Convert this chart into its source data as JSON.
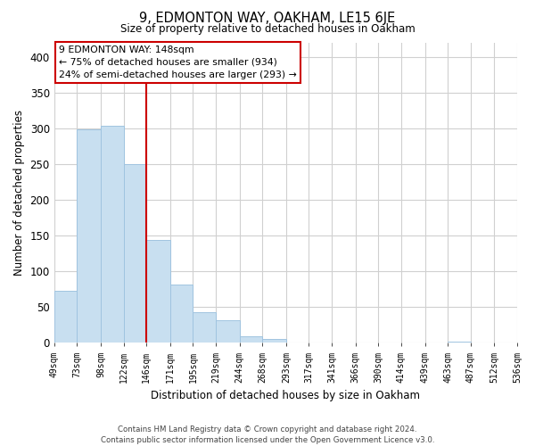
{
  "title": "9, EDMONTON WAY, OAKHAM, LE15 6JE",
  "subtitle": "Size of property relative to detached houses in Oakham",
  "xlabel": "Distribution of detached houses by size in Oakham",
  "ylabel": "Number of detached properties",
  "bar_values": [
    73,
    299,
    304,
    250,
    144,
    82,
    43,
    32,
    9,
    6,
    0,
    0,
    0,
    0,
    0,
    0,
    0,
    2,
    0,
    0
  ],
  "bin_edges": [
    49,
    73,
    98,
    122,
    146,
    171,
    195,
    219,
    244,
    268,
    293,
    317,
    341,
    366,
    390,
    414,
    439,
    463,
    487,
    512,
    536
  ],
  "tick_labels": [
    "49sqm",
    "73sqm",
    "98sqm",
    "122sqm",
    "146sqm",
    "171sqm",
    "195sqm",
    "219sqm",
    "244sqm",
    "268sqm",
    "293sqm",
    "317sqm",
    "341sqm",
    "366sqm",
    "390sqm",
    "414sqm",
    "439sqm",
    "463sqm",
    "487sqm",
    "512sqm",
    "536sqm"
  ],
  "bar_color": "#c8dff0",
  "bar_edge_color": "#a0c4e0",
  "vline_x": 146,
  "vline_color": "#cc0000",
  "ylim": [
    0,
    420
  ],
  "yticks": [
    0,
    50,
    100,
    150,
    200,
    250,
    300,
    350,
    400
  ],
  "annotation_title": "9 EDMONTON WAY: 148sqm",
  "annotation_line1": "← 75% of detached houses are smaller (934)",
  "annotation_line2": "24% of semi-detached houses are larger (293) →",
  "footer_line1": "Contains HM Land Registry data © Crown copyright and database right 2024.",
  "footer_line2": "Contains public sector information licensed under the Open Government Licence v3.0.",
  "background_color": "#ffffff",
  "grid_color": "#d0d0d0"
}
